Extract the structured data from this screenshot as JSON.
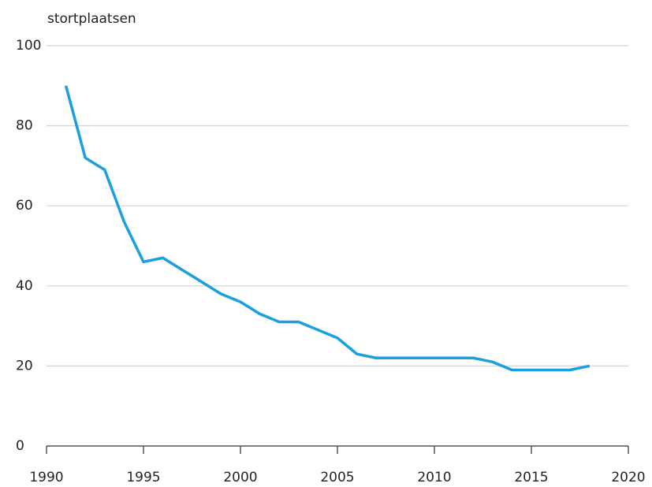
{
  "chart_data": {
    "type": "line",
    "y_label": "stortplaatsen",
    "x": [
      1991,
      1992,
      1993,
      1994,
      1995,
      1996,
      1997,
      1998,
      1999,
      2000,
      2001,
      2002,
      2003,
      2004,
      2005,
      2006,
      2007,
      2008,
      2009,
      2010,
      2011,
      2012,
      2013,
      2014,
      2015,
      2016,
      2017,
      2018
    ],
    "series": [
      {
        "name": "stortplaatsen",
        "color": "#1a9fe0",
        "values": [
          90,
          72,
          69,
          56,
          46,
          47,
          44,
          41,
          38,
          36,
          33,
          31,
          31,
          29,
          27,
          23,
          22,
          22,
          22,
          22,
          22,
          22,
          21,
          19,
          19,
          19,
          19,
          20
        ]
      }
    ],
    "xlim": [
      1990,
      2020
    ],
    "xticks": [
      1990,
      1995,
      2000,
      2005,
      2010,
      2015,
      2020
    ],
    "ylim": [
      0,
      100
    ],
    "yticks": [
      0,
      20,
      40,
      60,
      80,
      100
    ],
    "grid": true
  }
}
